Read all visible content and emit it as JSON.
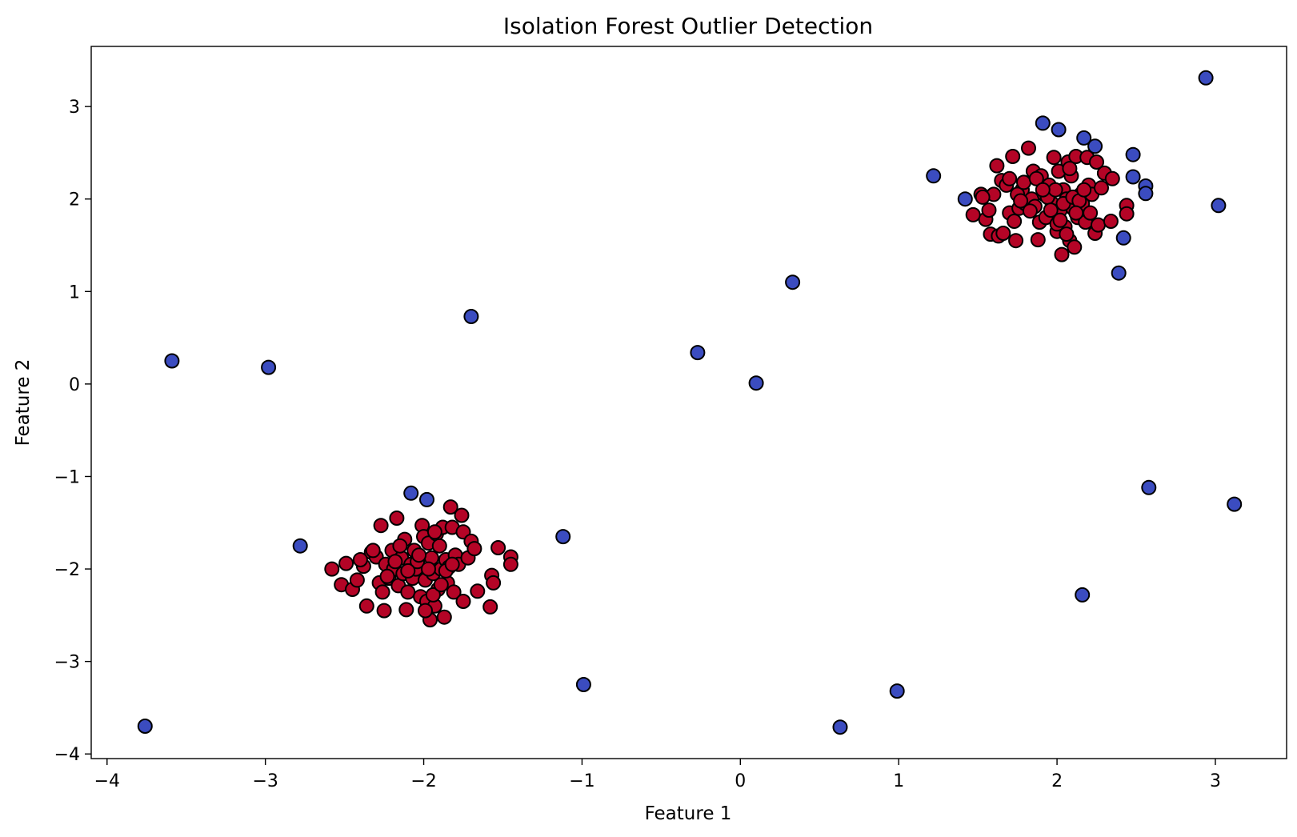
{
  "chart_data": {
    "type": "scatter",
    "title": "Isolation Forest Outlier Detection",
    "xlabel": "Feature 1",
    "ylabel": "Feature 2",
    "xlim": [
      -4.1,
      3.45
    ],
    "ylim": [
      -4.05,
      3.65
    ],
    "xticks": [
      -4,
      -3,
      -2,
      -1,
      0,
      1,
      2,
      3
    ],
    "yticks": [
      -4,
      -3,
      -2,
      -1,
      0,
      1,
      2,
      3
    ],
    "xtick_labels": [
      "−4",
      "−3",
      "−2",
      "−1",
      "0",
      "1",
      "2",
      "3"
    ],
    "ytick_labels": [
      "−4",
      "−3",
      "−2",
      "−1",
      "0",
      "1",
      "2",
      "3"
    ],
    "grid": false,
    "colors": {
      "inlier": "#b40426",
      "outlier": "#3b4cc0",
      "edge": "#000000"
    },
    "series": [
      {
        "class": "inlier",
        "points": [
          [
            1.52,
            2.05
          ],
          [
            1.55,
            1.78
          ],
          [
            1.58,
            1.62
          ],
          [
            1.6,
            2.05
          ],
          [
            1.62,
            2.36
          ],
          [
            1.63,
            1.6
          ],
          [
            1.65,
            2.2
          ],
          [
            1.68,
            2.15
          ],
          [
            1.7,
            1.85
          ],
          [
            1.72,
            2.46
          ],
          [
            1.73,
            1.76
          ],
          [
            1.74,
            1.55
          ],
          [
            1.76,
            1.9
          ],
          [
            1.78,
            2.1
          ],
          [
            1.8,
            1.95
          ],
          [
            1.82,
            2.55
          ],
          [
            1.84,
            2.0
          ],
          [
            1.85,
            2.3
          ],
          [
            1.86,
            1.92
          ],
          [
            1.88,
            1.56
          ],
          [
            1.89,
            1.75
          ],
          [
            1.9,
            2.25
          ],
          [
            1.92,
            2.05
          ],
          [
            1.93,
            1.8
          ],
          [
            1.95,
            2.15
          ],
          [
            1.97,
            1.95
          ],
          [
            1.98,
            2.45
          ],
          [
            2.0,
            1.65
          ],
          [
            2.01,
            2.3
          ],
          [
            2.02,
            1.88
          ],
          [
            2.03,
            1.4
          ],
          [
            2.04,
            2.1
          ],
          [
            2.05,
            1.7
          ],
          [
            2.06,
            2.0
          ],
          [
            2.07,
            2.4
          ],
          [
            2.08,
            1.55
          ],
          [
            2.09,
            2.25
          ],
          [
            2.1,
            1.9
          ],
          [
            2.11,
            1.48
          ],
          [
            2.12,
            2.46
          ],
          [
            2.13,
            1.8
          ],
          [
            2.15,
            2.05
          ],
          [
            2.16,
            1.95
          ],
          [
            2.18,
            1.75
          ],
          [
            2.19,
            2.45
          ],
          [
            2.2,
            2.15
          ],
          [
            2.22,
            2.05
          ],
          [
            2.24,
            1.63
          ],
          [
            2.25,
            2.4
          ],
          [
            2.26,
            1.72
          ],
          [
            2.28,
            2.12
          ],
          [
            2.3,
            2.28
          ],
          [
            2.34,
            1.76
          ],
          [
            2.35,
            2.22
          ],
          [
            2.44,
            1.93
          ],
          [
            2.44,
            1.84
          ],
          [
            1.47,
            1.83
          ],
          [
            1.53,
            2.02
          ],
          [
            1.57,
            1.88
          ],
          [
            1.66,
            1.63
          ],
          [
            1.7,
            2.22
          ],
          [
            1.75,
            2.05
          ],
          [
            1.79,
            2.18
          ],
          [
            1.83,
            1.87
          ],
          [
            1.87,
            2.22
          ],
          [
            1.94,
            2.02
          ],
          [
            1.96,
            1.88
          ],
          [
            1.99,
            2.1
          ],
          [
            2.0,
            1.73
          ],
          [
            2.04,
            1.95
          ],
          [
            2.06,
            1.62
          ],
          [
            2.08,
            2.33
          ],
          [
            2.1,
            2.02
          ],
          [
            2.14,
            1.98
          ],
          [
            2.17,
            2.1
          ],
          [
            2.21,
            1.85
          ],
          [
            2.02,
            1.77
          ],
          [
            1.91,
            2.1
          ],
          [
            1.77,
            1.98
          ],
          [
            2.12,
            1.85
          ],
          [
            -2.58,
            -2.0
          ],
          [
            -2.52,
            -2.17
          ],
          [
            -2.49,
            -1.94
          ],
          [
            -2.45,
            -2.22
          ],
          [
            -2.42,
            -2.12
          ],
          [
            -2.38,
            -1.97
          ],
          [
            -2.36,
            -2.4
          ],
          [
            -2.33,
            -1.82
          ],
          [
            -2.3,
            -1.87
          ],
          [
            -2.28,
            -2.15
          ],
          [
            -2.27,
            -1.53
          ],
          [
            -2.25,
            -2.45
          ],
          [
            -2.24,
            -1.95
          ],
          [
            -2.22,
            -2.1
          ],
          [
            -2.2,
            -1.8
          ],
          [
            -2.19,
            -2.0
          ],
          [
            -2.17,
            -1.45
          ],
          [
            -2.16,
            -2.18
          ],
          [
            -2.14,
            -1.88
          ],
          [
            -2.13,
            -2.05
          ],
          [
            -2.12,
            -1.68
          ],
          [
            -2.11,
            -2.44
          ],
          [
            -2.1,
            -2.25
          ],
          [
            -2.08,
            -1.95
          ],
          [
            -2.07,
            -2.1
          ],
          [
            -2.06,
            -1.8
          ],
          [
            -2.05,
            -2.0
          ],
          [
            -2.04,
            -1.92
          ],
          [
            -2.02,
            -2.3
          ],
          [
            -2.01,
            -1.53
          ],
          [
            -2.0,
            -1.65
          ],
          [
            -1.99,
            -2.12
          ],
          [
            -1.98,
            -2.35
          ],
          [
            -1.97,
            -1.72
          ],
          [
            -1.96,
            -2.55
          ],
          [
            -1.95,
            -1.88
          ],
          [
            -1.94,
            -2.05
          ],
          [
            -1.93,
            -2.4
          ],
          [
            -1.92,
            -1.62
          ],
          [
            -1.91,
            -2.22
          ],
          [
            -1.9,
            -1.75
          ],
          [
            -1.89,
            -2.0
          ],
          [
            -1.88,
            -1.55
          ],
          [
            -1.87,
            -2.52
          ],
          [
            -1.86,
            -1.9
          ],
          [
            -1.85,
            -2.15
          ],
          [
            -1.84,
            -1.98
          ],
          [
            -1.83,
            -1.33
          ],
          [
            -1.82,
            -1.55
          ],
          [
            -1.81,
            -2.25
          ],
          [
            -1.8,
            -1.85
          ],
          [
            -1.78,
            -1.95
          ],
          [
            -1.76,
            -1.42
          ],
          [
            -1.75,
            -2.35
          ],
          [
            -1.75,
            -1.6
          ],
          [
            -1.72,
            -1.88
          ],
          [
            -1.7,
            -1.7
          ],
          [
            -1.68,
            -1.78
          ],
          [
            -1.66,
            -2.24
          ],
          [
            -1.58,
            -2.41
          ],
          [
            -1.57,
            -2.07
          ],
          [
            -1.56,
            -2.15
          ],
          [
            -1.53,
            -1.77
          ],
          [
            -1.45,
            -1.87
          ],
          [
            -1.45,
            -1.95
          ],
          [
            -2.4,
            -1.9
          ],
          [
            -2.32,
            -1.8
          ],
          [
            -2.26,
            -2.25
          ],
          [
            -2.18,
            -1.92
          ],
          [
            -2.1,
            -2.02
          ],
          [
            -2.03,
            -1.85
          ],
          [
            -1.97,
            -2.0
          ],
          [
            -1.94,
            -2.28
          ],
          [
            -1.89,
            -2.17
          ],
          [
            -1.86,
            -2.02
          ],
          [
            -1.82,
            -1.95
          ],
          [
            -2.15,
            -1.75
          ],
          [
            -1.99,
            -2.45
          ],
          [
            -1.93,
            -1.6
          ],
          [
            -2.23,
            -2.08
          ]
        ]
      },
      {
        "class": "outlier",
        "points": [
          [
            -3.76,
            -3.7
          ],
          [
            -3.59,
            0.25
          ],
          [
            -2.98,
            0.18
          ],
          [
            -2.78,
            -1.75
          ],
          [
            -2.08,
            -1.18
          ],
          [
            -1.98,
            -1.25
          ],
          [
            -1.7,
            0.73
          ],
          [
            -1.12,
            -1.65
          ],
          [
            -0.99,
            -3.25
          ],
          [
            -0.27,
            0.34
          ],
          [
            0.1,
            0.01
          ],
          [
            0.33,
            1.1
          ],
          [
            0.63,
            -3.71
          ],
          [
            0.99,
            -3.32
          ],
          [
            1.22,
            2.25
          ],
          [
            1.42,
            2.0
          ],
          [
            1.91,
            2.82
          ],
          [
            2.01,
            2.75
          ],
          [
            2.17,
            2.66
          ],
          [
            2.16,
            -2.28
          ],
          [
            2.24,
            2.57
          ],
          [
            2.39,
            1.2
          ],
          [
            2.42,
            1.58
          ],
          [
            2.48,
            2.48
          ],
          [
            2.48,
            2.24
          ],
          [
            2.56,
            2.14
          ],
          [
            2.56,
            2.06
          ],
          [
            2.58,
            -1.12
          ],
          [
            2.94,
            3.31
          ],
          [
            3.02,
            1.93
          ],
          [
            3.12,
            -1.3
          ]
        ]
      }
    ]
  }
}
